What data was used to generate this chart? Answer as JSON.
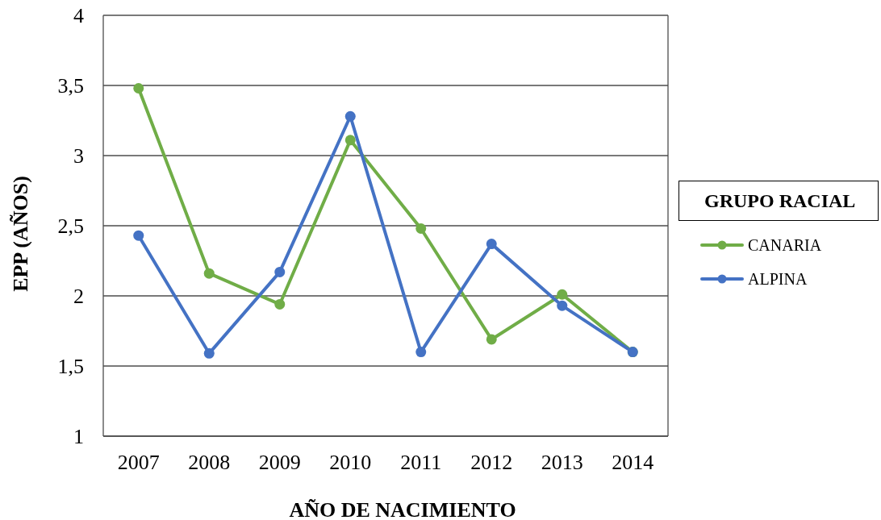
{
  "chart_data": {
    "type": "line",
    "xlabel": "AÑO DE NACIMIENTO",
    "ylabel": "EPP (AÑOS)",
    "legend_title": "GRUPO RACIAL",
    "categories": [
      "2007",
      "2008",
      "2009",
      "2010",
      "2011",
      "2012",
      "2013",
      "2014"
    ],
    "series": [
      {
        "name": "CANARIA",
        "color": "#70ad47",
        "values": [
          3.48,
          2.16,
          1.94,
          3.11,
          2.48,
          1.69,
          2.01,
          1.6
        ]
      },
      {
        "name": "ALPINA",
        "color": "#4472c4",
        "values": [
          2.43,
          1.59,
          2.17,
          3.28,
          1.6,
          2.37,
          1.93,
          1.6
        ]
      }
    ],
    "ylim": [
      1,
      4
    ],
    "yticks": [
      1,
      {
        "value": 1.5,
        "label": "1,5"
      },
      2,
      {
        "value": 2.5,
        "label": "2,5"
      },
      3,
      {
        "value": 3.5,
        "label": "3,5"
      },
      4
    ],
    "grid": "y",
    "legend": "right",
    "marker": "circle",
    "line_style": "solid"
  }
}
